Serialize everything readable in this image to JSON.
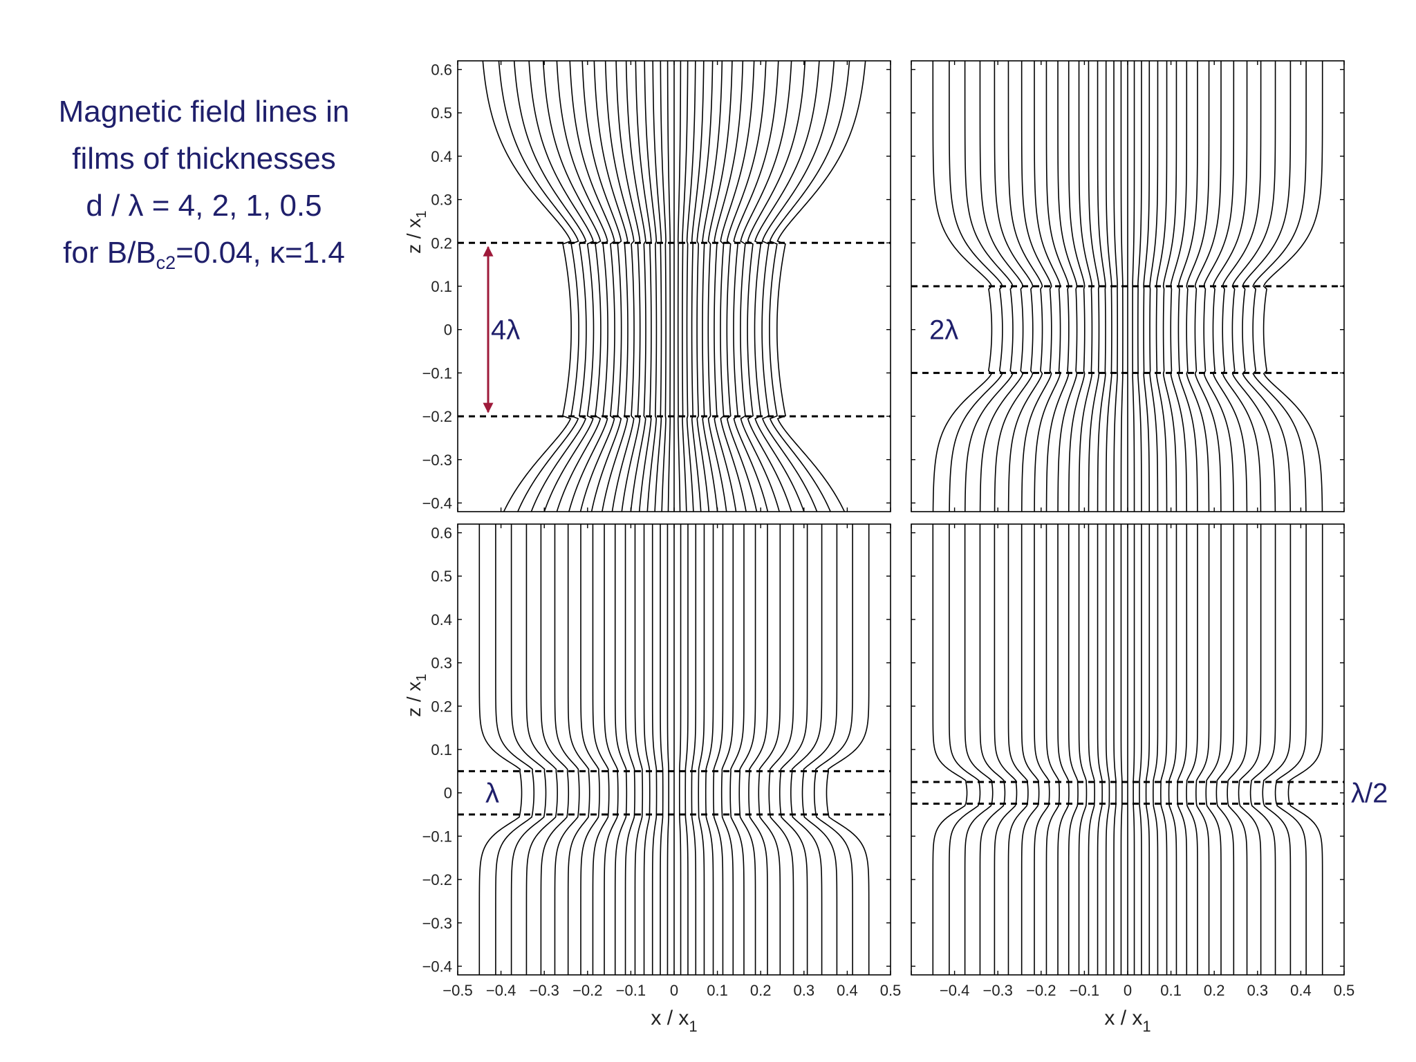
{
  "caption": {
    "line1": "Magnetic field lines in",
    "line2": "films  of  thicknesses",
    "line3": "d / λ = 4, 2, 1, 0.5",
    "line4_pre": "for B/B",
    "line4_sub": "c2",
    "line4_post": "=0.04, κ=1.4"
  },
  "colors": {
    "annotation": "#1f1f6b",
    "arrow": "#9e1a3a",
    "line": "#000000"
  },
  "chart_data": [
    {
      "type": "line",
      "panel": "top-left",
      "xlim": [
        -0.5,
        0.5
      ],
      "ylim": [
        -0.42,
        0.62
      ],
      "xticks": [],
      "yticks": [
        0.6,
        0.5,
        0.4,
        0.3,
        0.2,
        0.1,
        0,
        -0.1,
        -0.2,
        -0.3,
        -0.4
      ],
      "ylabel": "z / x",
      "ylabel_sub": "1",
      "xlabel": "",
      "film_half_thickness": 0.2,
      "film_label": "4λ",
      "field_line_count": 35,
      "field_line_max_x": 0.45,
      "thickness_arrow": true
    },
    {
      "type": "line",
      "panel": "top-right",
      "xlim": [
        -0.5,
        0.5
      ],
      "ylim": [
        -0.42,
        0.62
      ],
      "xticks": [],
      "yticks": [],
      "ylabel": "",
      "xlabel": "",
      "film_half_thickness": 0.1,
      "film_label": "2λ",
      "field_line_count": 35,
      "field_line_max_x": 0.45,
      "thickness_arrow": false
    },
    {
      "type": "line",
      "panel": "bottom-left",
      "xlim": [
        -0.5,
        0.5
      ],
      "ylim": [
        -0.42,
        0.62
      ],
      "xticks": [
        -0.5,
        -0.4,
        -0.3,
        -0.2,
        -0.1,
        0,
        0.1,
        0.2,
        0.3,
        0.4,
        0.5
      ],
      "yticks": [
        0.6,
        0.5,
        0.4,
        0.3,
        0.2,
        0.1,
        0,
        -0.1,
        -0.2,
        -0.3,
        -0.4
      ],
      "ylabel": "z / x",
      "ylabel_sub": "1",
      "xlabel": "x / x",
      "xlabel_sub": "1",
      "film_half_thickness": 0.05,
      "film_label": "λ",
      "field_line_count": 35,
      "field_line_max_x": 0.45,
      "thickness_arrow": false
    },
    {
      "type": "line",
      "panel": "bottom-right",
      "xlim": [
        -0.5,
        0.5
      ],
      "ylim": [
        -0.42,
        0.62
      ],
      "xticks": [
        -0.4,
        -0.3,
        -0.2,
        -0.1,
        0,
        0.1,
        0.2,
        0.3,
        0.4,
        0.5
      ],
      "yticks": [],
      "ylabel": "",
      "xlabel": "x / x",
      "xlabel_sub": "1",
      "film_half_thickness": 0.025,
      "film_label": "λ/2",
      "field_line_count": 35,
      "field_line_max_x": 0.45,
      "thickness_arrow": false
    }
  ]
}
